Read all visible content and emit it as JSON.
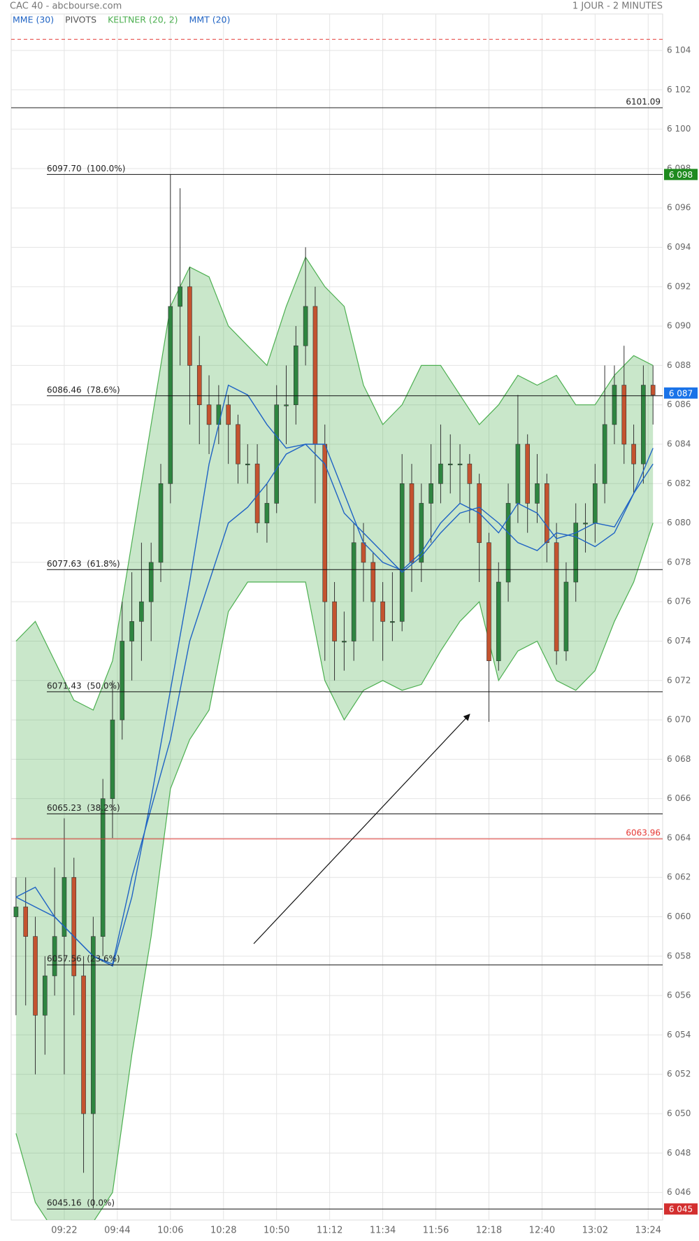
{
  "chart_data": {
    "type": "candlestick",
    "title": "CAC 40 - abcbourse.com",
    "subtitle": "1 JOUR - 2 MINUTES",
    "xlim": [
      540,
      810
    ],
    "xticks": [
      {
        "value": 562,
        "label": "09:22"
      },
      {
        "value": 584,
        "label": "09:44"
      },
      {
        "value": 606,
        "label": "10:06"
      },
      {
        "value": 628,
        "label": "10:28"
      },
      {
        "value": 650,
        "label": "10:50"
      },
      {
        "value": 672,
        "label": "11:12"
      },
      {
        "value": 694,
        "label": "11:34"
      },
      {
        "value": 716,
        "label": "11:56"
      },
      {
        "value": 738,
        "label": "12:18"
      },
      {
        "value": 760,
        "label": "12:40"
      },
      {
        "value": 782,
        "label": "13:02"
      },
      {
        "value": 804,
        "label": "13:24"
      }
    ],
    "ylim": [
      6044.6,
      6105.85
    ],
    "yticks": [
      {
        "value": 6046,
        "label": "6 046"
      },
      {
        "value": 6048,
        "label": "6 048"
      },
      {
        "value": 6050,
        "label": "6 050"
      },
      {
        "value": 6052,
        "label": "6 052"
      },
      {
        "value": 6054,
        "label": "6 054"
      },
      {
        "value": 6056,
        "label": "6 056"
      },
      {
        "value": 6058,
        "label": "6 058"
      },
      {
        "value": 6060,
        "label": "6 060"
      },
      {
        "value": 6062,
        "label": "6 062"
      },
      {
        "value": 6064,
        "label": "6 064"
      },
      {
        "value": 6066,
        "label": "6 066"
      },
      {
        "value": 6068,
        "label": "6 068"
      },
      {
        "value": 6070,
        "label": "6 070"
      },
      {
        "value": 6072,
        "label": "6 072"
      },
      {
        "value": 6074,
        "label": "6 074"
      },
      {
        "value": 6076,
        "label": "6 076"
      },
      {
        "value": 6078,
        "label": "6 078"
      },
      {
        "value": 6080,
        "label": "6 080"
      },
      {
        "value": 6082,
        "label": "6 082"
      },
      {
        "value": 6084,
        "label": "6 084"
      },
      {
        "value": 6086,
        "label": "6 086"
      },
      {
        "value": 6088,
        "label": "6 088"
      },
      {
        "value": 6090,
        "label": "6 090"
      },
      {
        "value": 6092,
        "label": "6 092"
      },
      {
        "value": 6094,
        "label": "6 094"
      },
      {
        "value": 6096,
        "label": "6 096"
      },
      {
        "value": 6098,
        "label": "6 098"
      },
      {
        "value": 6100,
        "label": "6 100"
      },
      {
        "value": 6102,
        "label": "6 102"
      },
      {
        "value": 6104,
        "label": "6 104"
      }
    ],
    "grid": true,
    "candles": {
      "up_color": "#2e8540",
      "down_color": "#c4532f",
      "x": [
        542,
        546,
        550,
        554,
        558,
        562,
        566,
        570,
        574,
        578,
        582,
        586,
        590,
        594,
        598,
        602,
        606,
        610,
        614,
        618,
        622,
        626,
        630,
        634,
        638,
        642,
        646,
        650,
        654,
        658,
        662,
        666,
        670,
        674,
        678,
        682,
        686,
        690,
        694,
        698,
        702,
        706,
        710,
        714,
        718,
        722,
        726,
        730,
        734,
        738,
        742,
        746,
        750,
        754,
        758,
        762,
        766,
        770,
        774,
        778,
        782,
        786,
        790,
        794,
        798,
        802,
        806
      ],
      "open": [
        6060,
        6060.5,
        6059,
        6055,
        6057,
        6059,
        6062,
        6057,
        6050,
        6059,
        6066,
        6070,
        6074,
        6075,
        6076,
        6078,
        6082,
        6091,
        6092,
        6088,
        6086,
        6085,
        6086,
        6085,
        6083,
        6083,
        6080,
        6081,
        6086,
        6086,
        6089,
        6091,
        6084,
        6076,
        6074,
        6074,
        6079,
        6078,
        6076,
        6075,
        6075,
        6082,
        6078,
        6081,
        6082,
        6083,
        6083,
        6083,
        6082,
        6079,
        6073,
        6077,
        6081,
        6084,
        6081,
        6082,
        6079,
        6073.5,
        6077,
        6080,
        6080,
        6082,
        6085,
        6087,
        6084,
        6083,
        6087
      ],
      "high": [
        6062,
        6062,
        6060,
        6058,
        6062.5,
        6065,
        6063,
        6058,
        6060,
        6067,
        6072,
        6076,
        6077.5,
        6079,
        6079,
        6083,
        6097.7,
        6097,
        6093,
        6089.5,
        6087.5,
        6087,
        6086.5,
        6085.5,
        6084,
        6084,
        6082,
        6087,
        6088,
        6090,
        6094,
        6092,
        6085,
        6077,
        6075.5,
        6080,
        6080,
        6078.5,
        6077,
        6077.5,
        6083.5,
        6083,
        6082,
        6084,
        6085,
        6084.5,
        6084,
        6083.5,
        6082.5,
        6079.5,
        6078,
        6082,
        6086.5,
        6084.5,
        6083.5,
        6082.5,
        6080,
        6078,
        6081,
        6081,
        6083,
        6088,
        6088,
        6089,
        6085,
        6088,
        6088
      ],
      "low": [
        6055,
        6055.5,
        6052,
        6053,
        6056,
        6052,
        6055,
        6047,
        6045.2,
        6058,
        6064,
        6069,
        6072,
        6073,
        6074,
        6077,
        6081,
        6088,
        6085,
        6084,
        6083.5,
        6084,
        6083,
        6082,
        6082,
        6079.5,
        6079,
        6080.5,
        6084,
        6085,
        6088,
        6081,
        6073,
        6072,
        6072.5,
        6073,
        6076,
        6074,
        6073,
        6074,
        6074.5,
        6076.5,
        6077,
        6079,
        6081,
        6081.5,
        6081,
        6080,
        6077,
        6069.9,
        6072.5,
        6076,
        6080,
        6079.5,
        6080,
        6078,
        6072.8,
        6073,
        6076,
        6078.5,
        6079,
        6081,
        6084,
        6083,
        6081.5,
        6082,
        6085
      ],
      "close": [
        6060.5,
        6059,
        6055,
        6057,
        6059,
        6062,
        6057,
        6050,
        6059,
        6066,
        6070,
        6074,
        6075,
        6076,
        6078,
        6082,
        6091,
        6092,
        6088,
        6086,
        6085,
        6086,
        6085,
        6083,
        6083,
        6080,
        6081,
        6086,
        6086,
        6089,
        6091,
        6084,
        6076,
        6074,
        6074,
        6079,
        6078,
        6076,
        6075,
        6075,
        6082,
        6078,
        6081,
        6082,
        6083,
        6083,
        6083,
        6082,
        6079,
        6073,
        6077,
        6081,
        6084,
        6081,
        6082,
        6079,
        6073.5,
        6077,
        6080,
        6080,
        6082,
        6085,
        6087,
        6084,
        6083,
        6087,
        6086.5
      ]
    },
    "overlays": [
      {
        "name": "MME (30)",
        "type": "line",
        "color": "#1f63c4",
        "x": [
          542,
          550,
          558,
          566,
          574,
          582,
          590,
          598,
          606,
          614,
          622,
          630,
          638,
          646,
          654,
          662,
          670,
          678,
          686,
          694,
          702,
          710,
          718,
          726,
          734,
          742,
          750,
          758,
          766,
          774,
          782,
          790,
          798,
          806
        ],
        "values": [
          6061,
          6061.5,
          6060,
          6059,
          6058,
          6057.5,
          6061,
          6066,
          6071.5,
          6077,
          6083,
          6087,
          6086.5,
          6085,
          6083.8,
          6084,
          6084,
          6081.5,
          6079,
          6078,
          6077.6,
          6078.5,
          6080,
          6081,
          6080.5,
          6079.5,
          6081,
          6080.5,
          6079.2,
          6079.5,
          6080,
          6079.8,
          6081.5,
          6083.8
        ]
      },
      {
        "name": "PIVOTS",
        "type": "levels",
        "color": "#555555",
        "levels": [
          {
            "value": 6104.56,
            "color": "#e53935",
            "dash": true
          },
          {
            "value": 6101.09,
            "label": "6101.09",
            "color": "#222222"
          },
          {
            "value": 6063.96,
            "label": "6063.96",
            "color": "#e53935"
          }
        ]
      },
      {
        "name": "KELTNER (20, 2)",
        "type": "band",
        "color": "#4caf50",
        "x": [
          542,
          550,
          558,
          566,
          574,
          582,
          590,
          598,
          606,
          614,
          622,
          630,
          638,
          646,
          654,
          662,
          670,
          678,
          686,
          694,
          702,
          710,
          718,
          726,
          734,
          742,
          750,
          758,
          766,
          774,
          782,
          790,
          798,
          806
        ],
        "upper": [
          6074,
          6075,
          6073,
          6071,
          6070.5,
          6073,
          6079,
          6085,
          6091,
          6093,
          6092.5,
          6090,
          6089,
          6088,
          6091,
          6093.5,
          6092,
          6091,
          6087,
          6085,
          6086,
          6088,
          6088,
          6086.5,
          6085,
          6086,
          6087.5,
          6087,
          6087.5,
          6086,
          6086,
          6087.5,
          6088.5,
          6088
        ],
        "lower": [
          6049,
          6045.5,
          6044,
          6044,
          6044.5,
          6046,
          6053,
          6059,
          6066.5,
          6069,
          6070.5,
          6075.5,
          6077,
          6077,
          6077,
          6077,
          6072,
          6070,
          6071.5,
          6072,
          6071.5,
          6071.8,
          6073.5,
          6075,
          6076,
          6072,
          6073.5,
          6074,
          6072,
          6071.5,
          6072.5,
          6075,
          6077,
          6080
        ]
      },
      {
        "name": "MMT (20)",
        "type": "line",
        "color": "#1f63c4",
        "x": [
          542,
          550,
          558,
          566,
          574,
          582,
          590,
          598,
          606,
          614,
          622,
          630,
          638,
          646,
          654,
          662,
          670,
          678,
          686,
          694,
          702,
          710,
          718,
          726,
          734,
          742,
          750,
          758,
          766,
          774,
          782,
          790,
          798,
          806
        ],
        "values": [
          6061,
          6060.5,
          6060,
          6059,
          6058,
          6057.6,
          6062,
          6065.5,
          6069,
          6074,
          6077,
          6080,
          6080.8,
          6082,
          6083.5,
          6084,
          6083,
          6080.5,
          6079.5,
          6078.5,
          6077.5,
          6078.3,
          6079.5,
          6080.5,
          6080.8,
          6080,
          6079,
          6078.6,
          6079.5,
          6079.3,
          6078.8,
          6079.5,
          6081.5,
          6083
        ]
      }
    ],
    "fibonacci": [
      {
        "value": 6097.7,
        "label": "6097.70  (100.0%)"
      },
      {
        "value": 6086.46,
        "label": "6086.46  (78.6%)"
      },
      {
        "value": 6077.63,
        "label": "6077.63  (61.8%)"
      },
      {
        "value": 6071.43,
        "label": "6071.43  (50.0%)"
      },
      {
        "value": 6065.23,
        "label": "6065.23  (38.2%)"
      },
      {
        "value": 6057.56,
        "label": "6057.56  (23.6%)"
      },
      {
        "value": 6045.16,
        "label": "6045.16  (0.0%)"
      }
    ],
    "price_markers": [
      {
        "value": 6097.7,
        "label": "6 098",
        "color": "#1e8a1e"
      },
      {
        "value": 6086.6,
        "label": "6 087",
        "color": "#1a73e8"
      },
      {
        "value": 6045.16,
        "label": "6 045",
        "color": "#d32f2f"
      }
    ]
  }
}
